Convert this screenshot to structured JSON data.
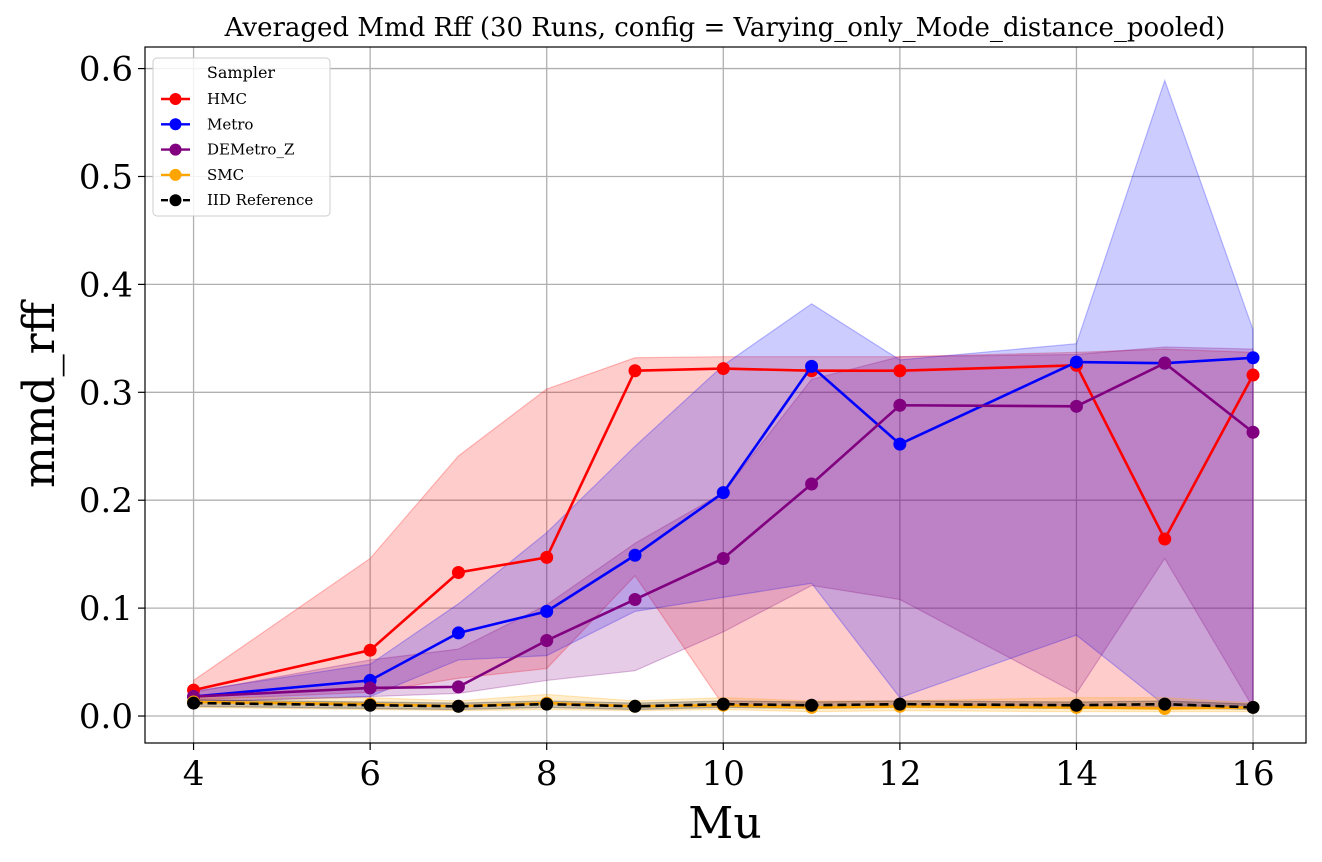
{
  "chart_data": {
    "type": "line",
    "title": "Averaged Mmd Rff (30 Runs, config = Varying_only_Mode_distance_pooled)",
    "xlabel": "Mu",
    "ylabel": "mmd_rff",
    "xlim": [
      3.45,
      16.6
    ],
    "ylim": [
      -0.025,
      0.62
    ],
    "x_ticks": [
      4,
      6,
      8,
      10,
      12,
      14,
      16
    ],
    "x_tick_labels": [
      "4",
      "6",
      "8",
      "10",
      "12",
      "14",
      "16"
    ],
    "y_ticks": [
      0.0,
      0.1,
      0.2,
      0.3,
      0.4,
      0.5,
      0.6
    ],
    "y_tick_labels": [
      "0.0",
      "0.1",
      "0.2",
      "0.3",
      "0.4",
      "0.5",
      "0.6"
    ],
    "grid": true,
    "legend": {
      "title": "Sampler",
      "position": "top-left"
    },
    "x": [
      4,
      6,
      7,
      8,
      9,
      10,
      11,
      12,
      14,
      15,
      16
    ],
    "series": [
      {
        "name": "HMC",
        "color": "#ff0000",
        "dashed": false,
        "values": [
          0.024,
          0.061,
          0.133,
          0.147,
          0.32,
          0.322,
          0.32,
          0.32,
          0.325,
          0.164,
          0.316
        ],
        "band_low": [
          0.015,
          0.022,
          0.035,
          0.044,
          0.13,
          0.01,
          0.008,
          0.01,
          0.01,
          0.008,
          0.008
        ],
        "band_high": [
          0.033,
          0.146,
          0.241,
          0.303,
          0.332,
          0.333,
          0.333,
          0.333,
          0.337,
          0.34,
          0.337
        ]
      },
      {
        "name": "Metro",
        "color": "#0000ff",
        "dashed": false,
        "values": [
          0.018,
          0.033,
          0.077,
          0.097,
          0.149,
          0.207,
          0.324,
          0.252,
          0.328,
          0.327,
          0.332
        ],
        "band_low": [
          0.013,
          0.018,
          0.052,
          0.056,
          0.097,
          0.11,
          0.123,
          0.017,
          0.075,
          0.01,
          0.008
        ],
        "band_high": [
          0.023,
          0.048,
          0.104,
          0.17,
          0.25,
          0.325,
          0.382,
          0.33,
          0.345,
          0.589,
          0.358
        ]
      },
      {
        "name": "DEMetro_Z",
        "color": "#800080",
        "dashed": false,
        "values": [
          0.018,
          0.026,
          0.027,
          0.07,
          0.108,
          0.146,
          0.215,
          0.288,
          0.287,
          0.327,
          0.263
        ],
        "band_low": [
          0.013,
          0.018,
          0.021,
          0.033,
          0.042,
          0.078,
          0.121,
          0.108,
          0.021,
          0.146,
          0.008
        ],
        "band_high": [
          0.022,
          0.052,
          0.062,
          0.103,
          0.16,
          0.207,
          0.312,
          0.333,
          0.335,
          0.342,
          0.34
        ]
      },
      {
        "name": "SMC",
        "color": "#ffa500",
        "dashed": false,
        "values": [
          0.013,
          0.011,
          0.009,
          0.012,
          0.009,
          0.01,
          0.008,
          0.009,
          0.008,
          0.007,
          0.008
        ],
        "band_low": [
          0.008,
          0.006,
          0.005,
          0.006,
          0.005,
          0.006,
          0.004,
          0.005,
          0.004,
          0.004,
          0.004
        ],
        "band_high": [
          0.017,
          0.017,
          0.014,
          0.02,
          0.014,
          0.017,
          0.014,
          0.014,
          0.017,
          0.017,
          0.012
        ]
      },
      {
        "name": "IID Reference",
        "color": "#000000",
        "dashed": true,
        "values": [
          0.012,
          0.01,
          0.009,
          0.011,
          0.009,
          0.011,
          0.01,
          0.011,
          0.01,
          0.011,
          0.008
        ],
        "band_low": [
          0.009,
          0.007,
          0.006,
          0.008,
          0.006,
          0.008,
          0.007,
          0.008,
          0.007,
          0.008,
          0.006
        ],
        "band_high": [
          0.015,
          0.013,
          0.012,
          0.014,
          0.012,
          0.014,
          0.013,
          0.014,
          0.013,
          0.014,
          0.011
        ]
      }
    ]
  }
}
